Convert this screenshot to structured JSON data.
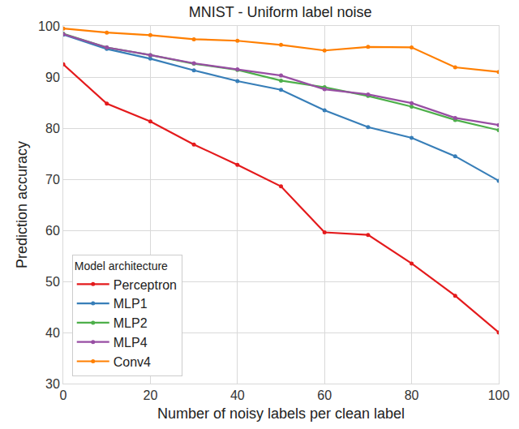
{
  "chart_data": {
    "type": "line",
    "title": "MNIST - Uniform label noise",
    "x_label": "Number of noisy labels per clean label",
    "y_label": "Prediction accuracy",
    "legend_title": "Model architecture",
    "x": [
      0,
      10,
      20,
      30,
      40,
      50,
      60,
      70,
      80,
      90,
      100
    ],
    "series": [
      {
        "name": "Perceptron",
        "color": "#e41a1c",
        "values": [
          92.5,
          84.8,
          81.3,
          76.8,
          72.8,
          68.6,
          59.6,
          59.1,
          53.5,
          47.2,
          40.0
        ]
      },
      {
        "name": "MLP1",
        "color": "#377eb8",
        "values": [
          98.3,
          95.5,
          93.6,
          91.3,
          89.2,
          87.5,
          83.5,
          80.2,
          78.1,
          74.5,
          69.7
        ]
      },
      {
        "name": "MLP2",
        "color": "#4daf4a",
        "values": [
          98.5,
          95.8,
          94.3,
          92.6,
          91.4,
          89.3,
          88.0,
          86.3,
          84.2,
          81.6,
          79.6
        ]
      },
      {
        "name": "MLP4",
        "color": "#984ea3",
        "values": [
          98.4,
          95.8,
          94.3,
          92.7,
          91.5,
          90.3,
          87.6,
          86.6,
          84.9,
          82.0,
          80.6
        ]
      },
      {
        "name": "Conv4",
        "color": "#ff7f00",
        "values": [
          99.5,
          98.7,
          98.2,
          97.4,
          97.1,
          96.3,
          95.2,
          95.9,
          95.8,
          91.9,
          91.0
        ]
      }
    ],
    "xlim": [
      0,
      100
    ],
    "xticks": [
      0,
      20,
      40,
      60,
      80,
      100
    ],
    "ylim": [
      30,
      100
    ],
    "yticks": [
      30,
      40,
      50,
      60,
      70,
      80,
      90,
      100
    ],
    "grid": true,
    "legend": "lower left",
    "marker": "circle",
    "line_style": "solid"
  }
}
